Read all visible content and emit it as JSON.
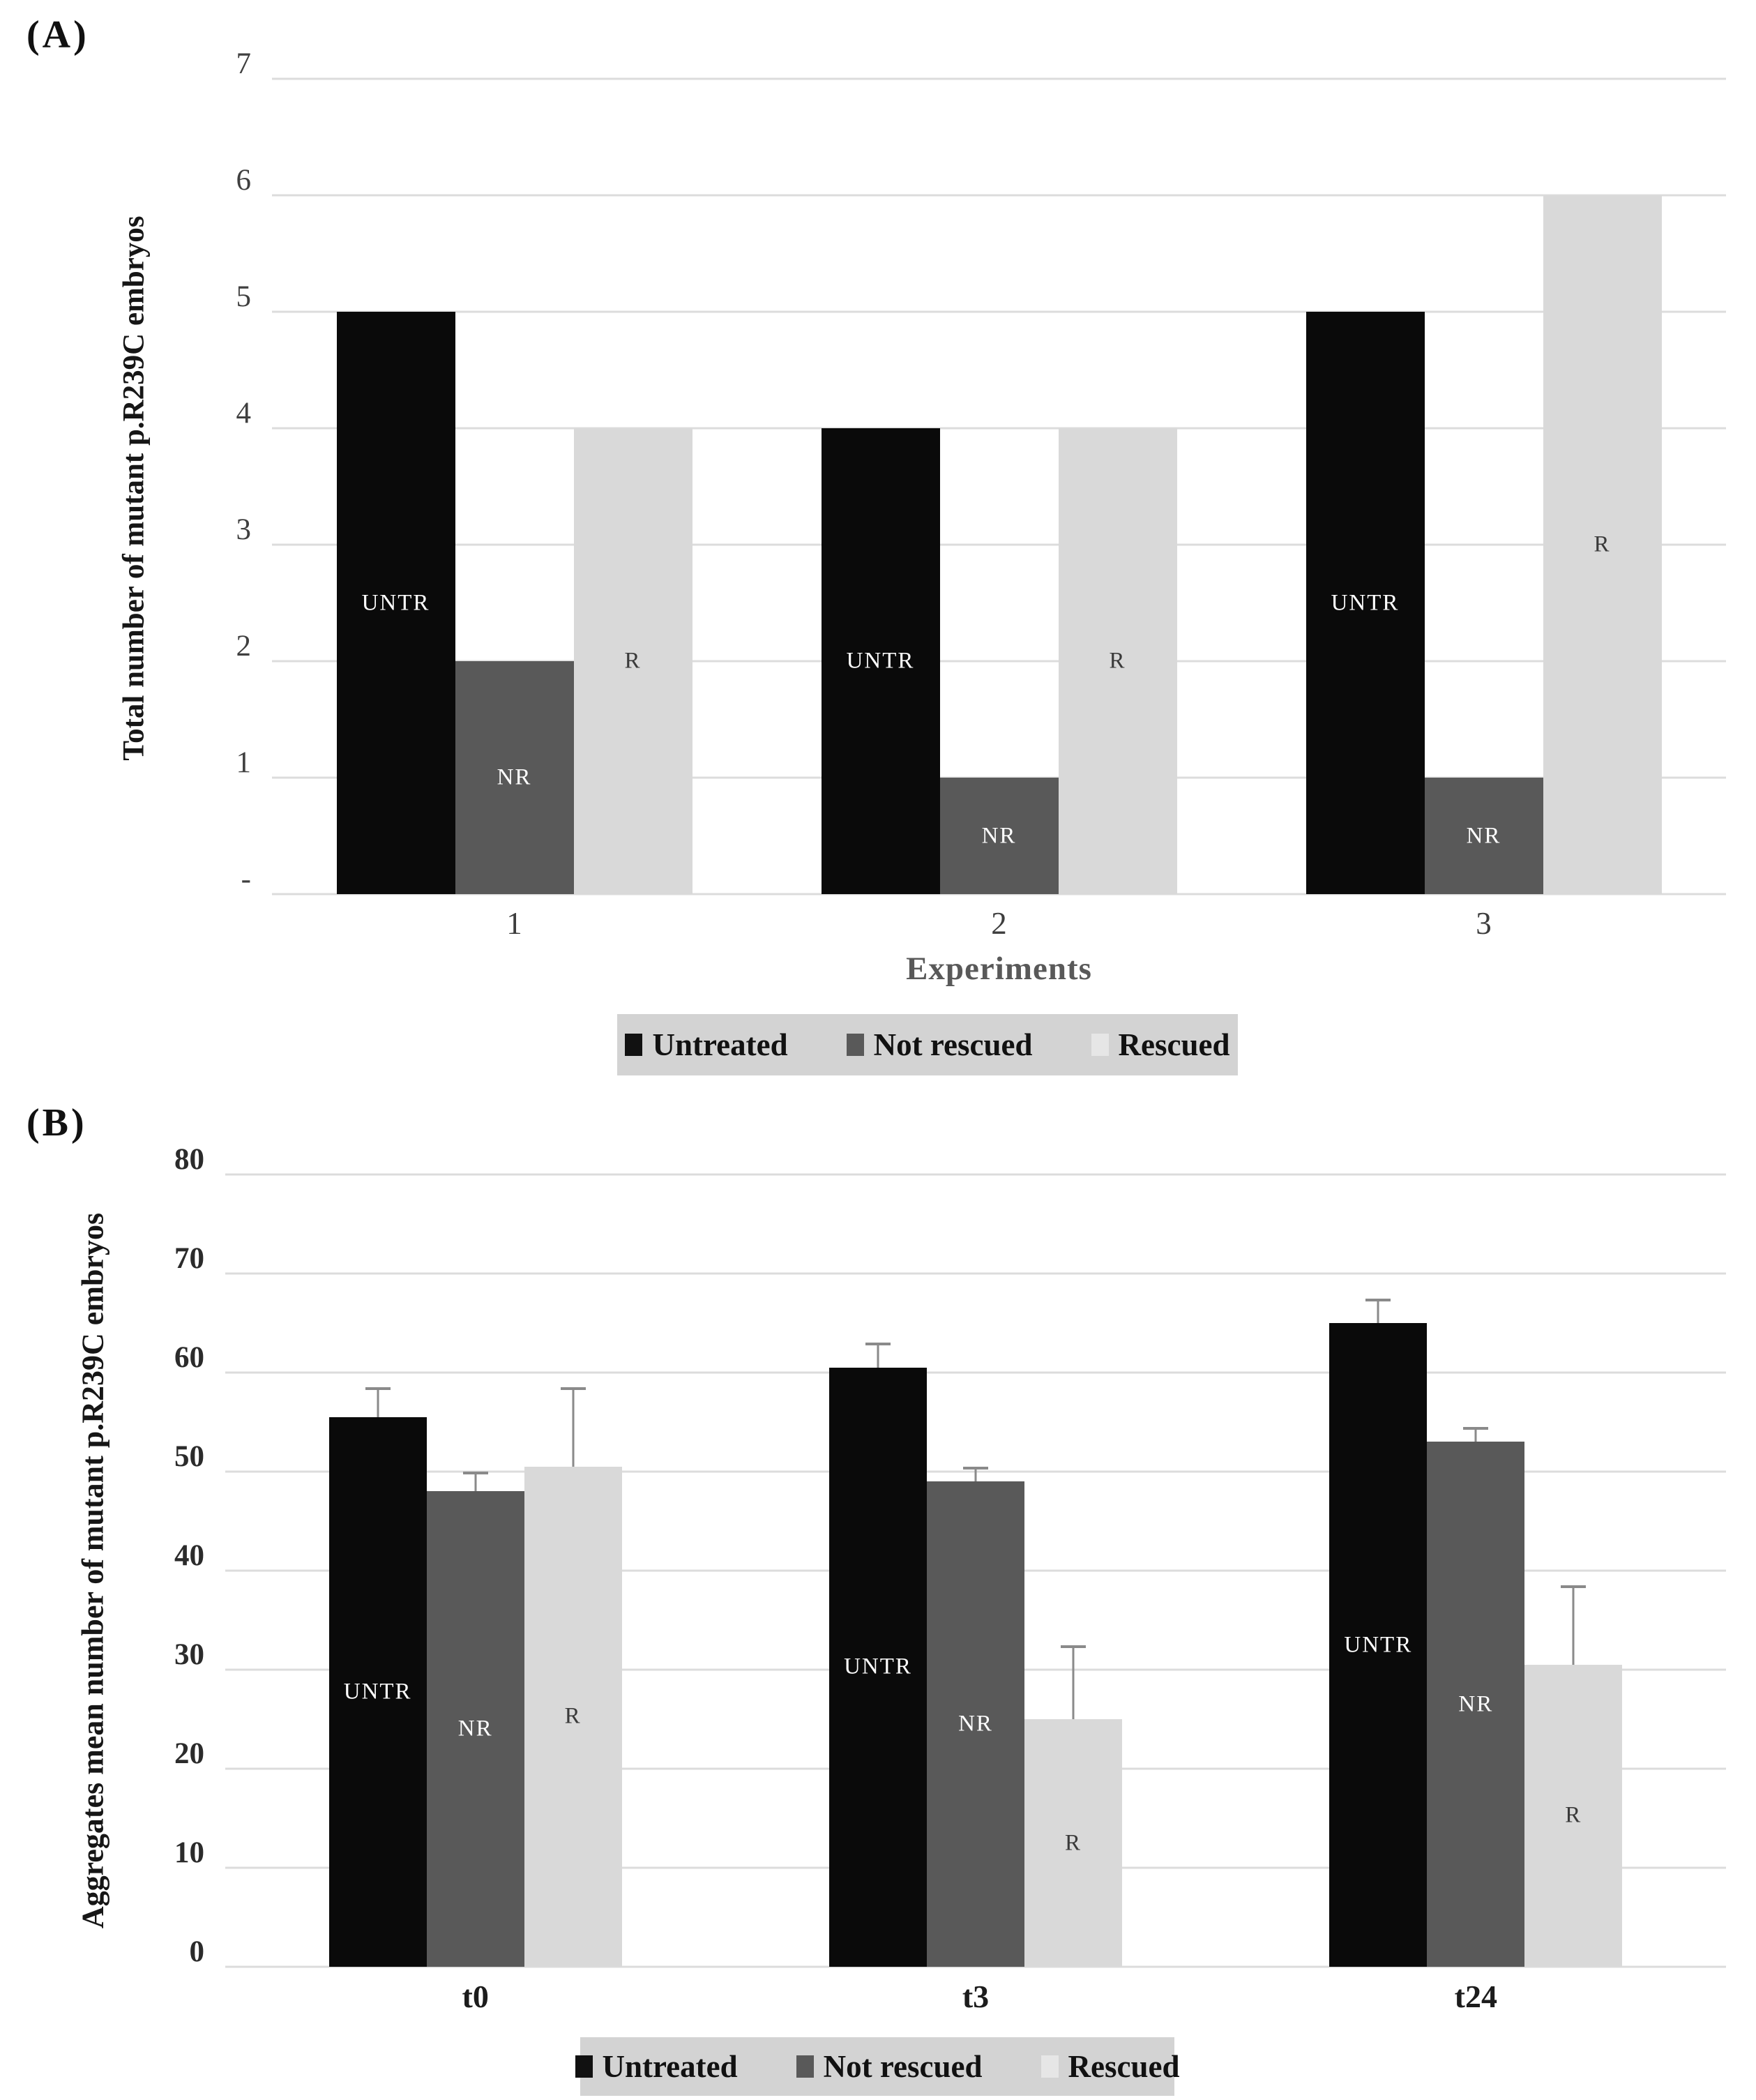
{
  "chart_data": [
    {
      "type": "bar",
      "panel_tag": "(A)",
      "ylabel": "Total number of mutant p.R239C embryos",
      "xlabel": "Experiments",
      "categories": [
        "1",
        "2",
        "3"
      ],
      "series": [
        {
          "name": "Untreated",
          "bar_label": "UNTR",
          "color": "#0a0a0a",
          "label_color": "#ffffff",
          "swatch": "#111111",
          "values": [
            5,
            4,
            5
          ]
        },
        {
          "name": "Not rescued",
          "bar_label": "NR",
          "color": "#595959",
          "label_color": "#ffffff",
          "swatch": "#595959",
          "values": [
            2,
            1,
            1
          ]
        },
        {
          "name": "Rescued",
          "bar_label": "R",
          "color": "#d9d9d9",
          "label_color": "#3a3a3a",
          "swatch": "#e6e6e6",
          "values": [
            4,
            4,
            6
          ]
        }
      ],
      "ylim": [
        0,
        7
      ],
      "yticks": [
        {
          "value": 0,
          "label": "-"
        },
        {
          "value": 1,
          "label": "1"
        },
        {
          "value": 2,
          "label": "2"
        },
        {
          "value": 3,
          "label": "3"
        },
        {
          "value": 4,
          "label": "4"
        },
        {
          "value": 5,
          "label": "5"
        },
        {
          "value": 6,
          "label": "6"
        },
        {
          "value": 7,
          "label": "7"
        }
      ],
      "grid": true,
      "legend": [
        "Untreated",
        "Not rescued",
        "Rescued"
      ],
      "legend_position": "bottom"
    },
    {
      "type": "bar",
      "panel_tag": "(B)",
      "ylabel": "Aggregates mean number of mutant p.R239C embryos",
      "xlabel": "",
      "categories": [
        "t0",
        "t3",
        "t24"
      ],
      "series": [
        {
          "name": "Untreated",
          "bar_label": "UNTR",
          "color": "#0a0a0a",
          "label_color": "#ffffff",
          "swatch": "#111111",
          "values": [
            55.5,
            60.5,
            65
          ],
          "errors": [
            3,
            2.5,
            2.5
          ]
        },
        {
          "name": "Not rescued",
          "bar_label": "NR",
          "color": "#595959",
          "label_color": "#ffffff",
          "swatch": "#595959",
          "values": [
            48,
            49,
            53
          ],
          "errors": [
            2,
            1.5,
            1.5
          ]
        },
        {
          "name": "Rescued",
          "bar_label": "R",
          "color": "#d9d9d9",
          "label_color": "#3a3a3a",
          "swatch": "#e6e6e6",
          "values": [
            50.5,
            25,
            30.5
          ],
          "errors": [
            8,
            7.5,
            8
          ]
        }
      ],
      "ylim": [
        0,
        80
      ],
      "yticks": [
        {
          "value": 0,
          "label": "0"
        },
        {
          "value": 10,
          "label": "10"
        },
        {
          "value": 20,
          "label": "20"
        },
        {
          "value": 30,
          "label": "30"
        },
        {
          "value": 40,
          "label": "40"
        },
        {
          "value": 50,
          "label": "50"
        },
        {
          "value": 60,
          "label": "60"
        },
        {
          "value": 70,
          "label": "70"
        },
        {
          "value": 80,
          "label": "80"
        }
      ],
      "grid": true,
      "legend": [
        "Untreated",
        "Not rescued",
        "Rescued"
      ],
      "legend_position": "bottom"
    }
  ],
  "styles": {
    "background": "#ffffff",
    "grid_color": "#dcdcdc",
    "legend_bg": "#d3d3d3",
    "error_bar_color": "#8a8a8a"
  }
}
